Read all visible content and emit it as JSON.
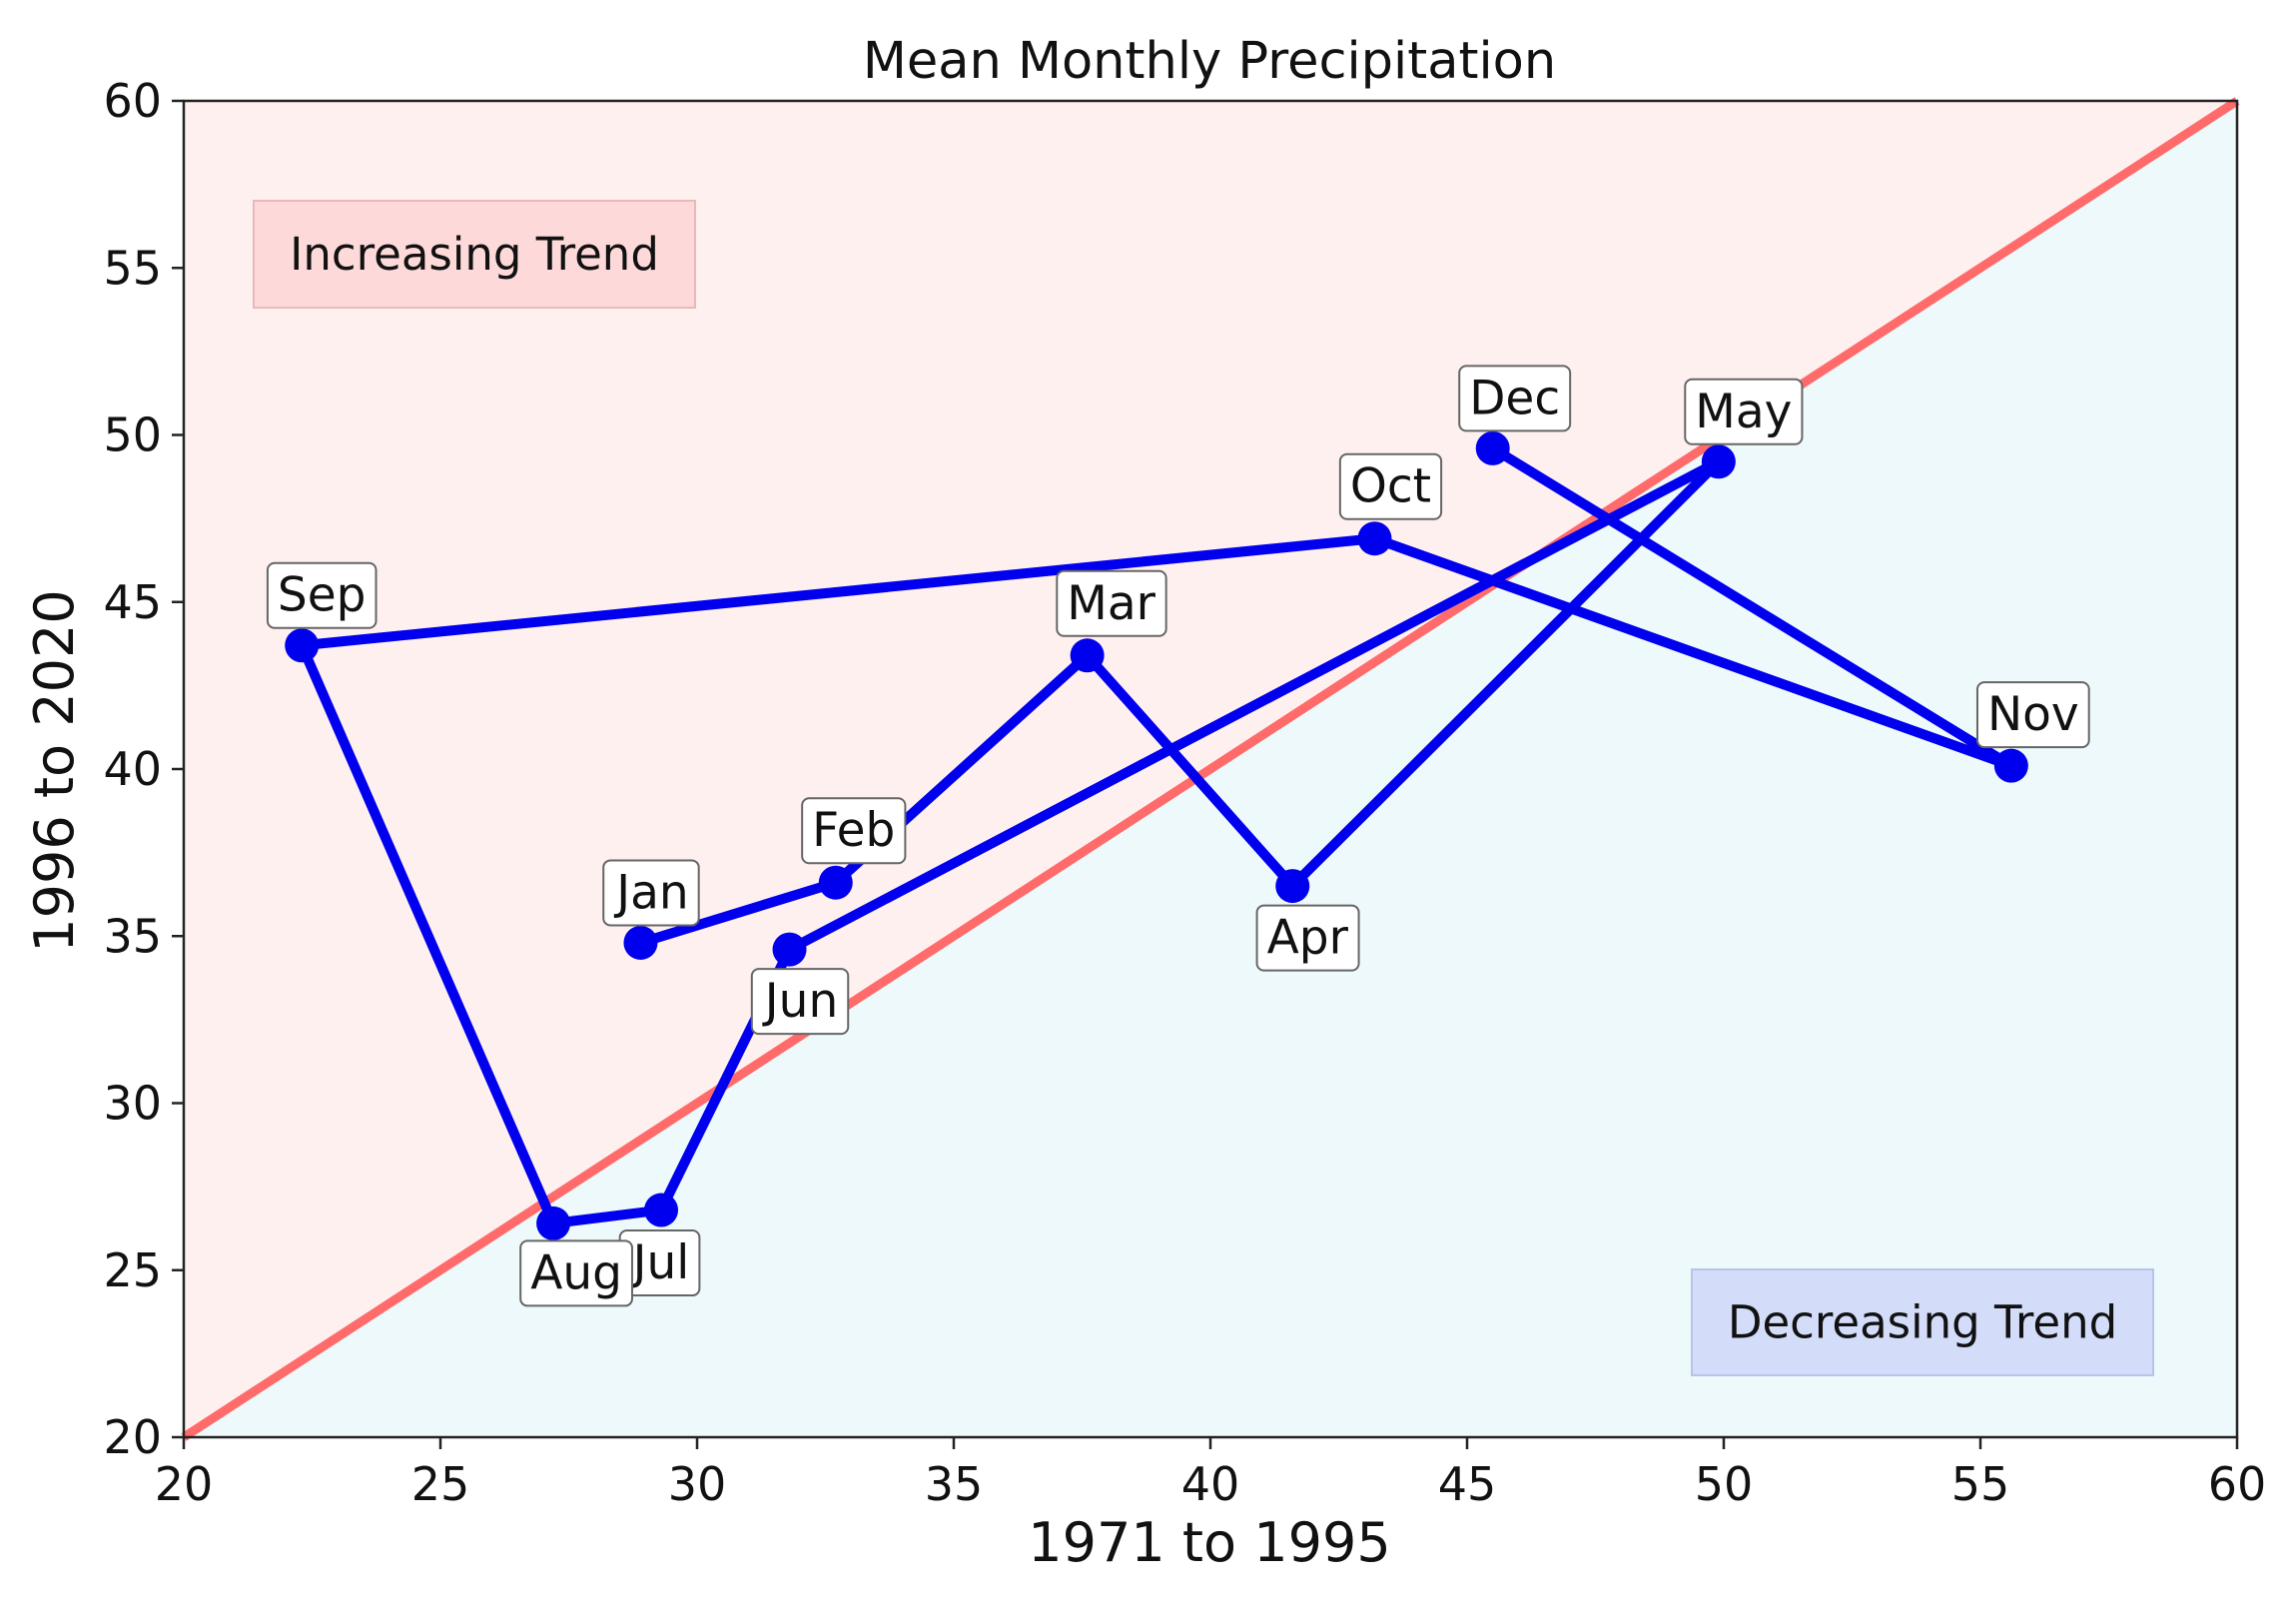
{
  "chart_data": {
    "type": "line",
    "title": "Mean Monthly Precipitation",
    "xlabel": "1971 to 1995",
    "ylabel": "1996 to 2020",
    "xlim": [
      20,
      60
    ],
    "ylim": [
      20,
      60
    ],
    "xticks": [
      20,
      25,
      30,
      35,
      40,
      45,
      50,
      55,
      60
    ],
    "yticks": [
      20,
      25,
      30,
      35,
      40,
      45,
      50,
      55,
      60
    ],
    "grid": false,
    "reference_line": {
      "x": [
        20,
        60
      ],
      "y": [
        20,
        60
      ],
      "color": "#ff6b6b"
    },
    "regions": {
      "increasing": {
        "label": "Increasing Trend",
        "fill": "#fff0f0",
        "box_fill": "#fdd9d9",
        "placement": "top-left"
      },
      "decreasing": {
        "label": "Decreasing Trend",
        "fill": "#eef9fb",
        "box_fill": "#d3dcf9",
        "placement": "bottom-right"
      }
    },
    "series": [
      {
        "color": "#0000ee",
        "points": [
          {
            "label": "Jan",
            "x": 28.9,
            "y": 34.8
          },
          {
            "label": "Feb",
            "x": 32.7,
            "y": 36.6
          },
          {
            "label": "Mar",
            "x": 37.6,
            "y": 43.4
          },
          {
            "label": "Apr",
            "x": 41.6,
            "y": 36.5
          },
          {
            "label": "May",
            "x": 49.9,
            "y": 49.2
          },
          {
            "label": "Jun",
            "x": 31.8,
            "y": 34.6
          },
          {
            "label": "Jul",
            "x": 29.3,
            "y": 26.8
          },
          {
            "label": "Aug",
            "x": 27.2,
            "y": 26.4
          },
          {
            "label": "Sep",
            "x": 22.3,
            "y": 43.7
          },
          {
            "label": "Oct",
            "x": 43.2,
            "y": 46.9
          },
          {
            "label": "Nov",
            "x": 55.6,
            "y": 40.1
          },
          {
            "label": "Dec",
            "x": 45.5,
            "y": 49.6
          }
        ]
      }
    ]
  }
}
